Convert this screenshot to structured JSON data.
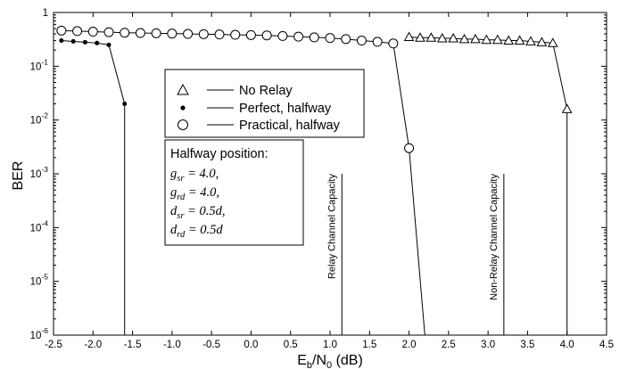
{
  "chart_data": {
    "type": "line",
    "xlabel": "E_b/N_0 (dB)",
    "ylabel": "BER",
    "xlim": [
      -2.5,
      4.5
    ],
    "ylim_log10": [
      -6,
      0
    ],
    "y_scale": "log",
    "grid": false,
    "legend_position": "upper-left (inside plot)",
    "x_ticks": [
      "-2.5",
      "-2.0",
      "-1.5",
      "-1.0",
      "-0.5",
      "0.0",
      "0.5",
      "1.0",
      "1.5",
      "2.0",
      "2.5",
      "3.0",
      "3.5",
      "4.0",
      "4.5"
    ],
    "y_ticks": [
      {
        "base": "10",
        "exp": "-6"
      },
      {
        "base": "10",
        "exp": "-5"
      },
      {
        "base": "10",
        "exp": "-4"
      },
      {
        "base": "10",
        "exp": "-3"
      },
      {
        "base": "10",
        "exp": "-2"
      },
      {
        "base": "10",
        "exp": "-1"
      },
      {
        "base": "1",
        "exp": ""
      }
    ],
    "series": [
      {
        "name": "No Relay",
        "marker": "triangle",
        "x": [
          2.0,
          2.14,
          2.28,
          2.42,
          2.56,
          2.7,
          2.84,
          2.98,
          3.12,
          3.26,
          3.4,
          3.54,
          3.68,
          3.82,
          4.0,
          4.0
        ],
        "y": [
          0.35,
          0.34,
          0.34,
          0.33,
          0.33,
          0.32,
          0.32,
          0.31,
          0.31,
          0.3,
          0.3,
          0.29,
          0.28,
          0.27,
          0.016,
          1e-06
        ],
        "marker_mask": [
          1,
          1,
          1,
          1,
          1,
          1,
          1,
          1,
          1,
          1,
          1,
          1,
          1,
          1,
          1,
          0
        ]
      },
      {
        "name": "Perfect, halfway",
        "marker": "dot",
        "x": [
          -2.4,
          -2.25,
          -2.1,
          -1.95,
          -1.8,
          -1.6,
          -1.6
        ],
        "y": [
          0.3,
          0.29,
          0.28,
          0.27,
          0.25,
          0.02,
          1e-06
        ],
        "marker_mask": [
          1,
          1,
          1,
          1,
          1,
          1,
          0
        ]
      },
      {
        "name": "Practical, halfway",
        "marker": "circle",
        "x": [
          -2.4,
          -2.2,
          -2.0,
          -1.8,
          -1.6,
          -1.4,
          -1.2,
          -1.0,
          -0.8,
          -0.6,
          -0.4,
          -0.2,
          0.0,
          0.2,
          0.4,
          0.6,
          0.8,
          1.0,
          1.2,
          1.4,
          1.6,
          1.8,
          2.0,
          2.2
        ],
        "y": [
          0.46,
          0.45,
          0.44,
          0.43,
          0.42,
          0.415,
          0.41,
          0.405,
          0.4,
          0.395,
          0.39,
          0.385,
          0.38,
          0.375,
          0.365,
          0.355,
          0.345,
          0.335,
          0.32,
          0.3,
          0.285,
          0.265,
          0.003,
          1e-06
        ],
        "marker_mask": [
          1,
          1,
          1,
          1,
          1,
          1,
          1,
          1,
          1,
          1,
          1,
          1,
          1,
          1,
          1,
          1,
          1,
          1,
          1,
          1,
          1,
          1,
          1,
          0
        ]
      }
    ],
    "capacity_lines": [
      {
        "label": "Relay Channel Capacity",
        "x": 1.15,
        "y_top": 0.001,
        "y_bottom": 1e-06
      },
      {
        "label": "Non-Relay Channel Capacity",
        "x": 3.2,
        "y_top": 0.001,
        "y_bottom": 1e-06
      }
    ],
    "annotation_box": {
      "title": "Halfway position:",
      "lines": [
        {
          "sym": "g",
          "sub": "sr",
          "val": " = 4.0,"
        },
        {
          "sym": "g",
          "sub": "rd",
          "val": " = 4.0,"
        },
        {
          "sym": "d",
          "sub": "sr",
          "val": " = 0.5d,"
        },
        {
          "sym": "d",
          "sub": "rd",
          "val": " = 0.5d"
        }
      ]
    }
  }
}
